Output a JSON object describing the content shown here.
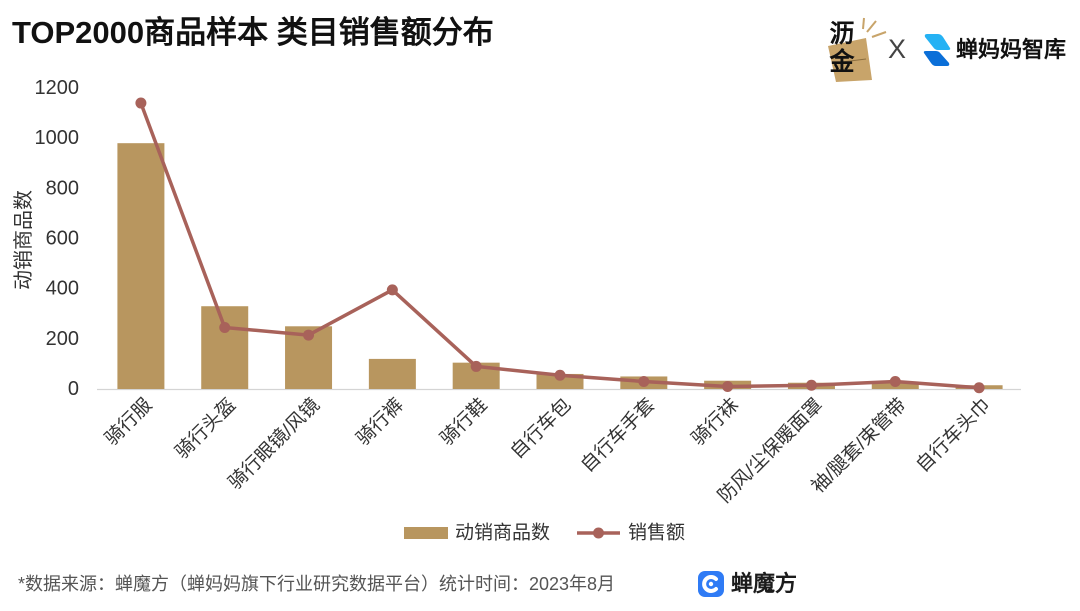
{
  "header": {
    "partner_logo_text": "沥金",
    "separator": "X",
    "logo_text": "蝉妈妈智库",
    "colors": {
      "partner_gold": "#C8A46A",
      "brand_blue_light": "#25B2F4",
      "brand_blue_dark": "#0B6FD8"
    }
  },
  "chart_data": {
    "type": "bar",
    "title": "TOP2000商品样本 类目销售额分布",
    "xlabel": "",
    "ylabel": "动销商品数",
    "ylim": [
      0,
      1200
    ],
    "yticks": [
      0,
      200,
      400,
      600,
      800,
      1000,
      1200
    ],
    "grid": false,
    "legend": "bottom",
    "categories": [
      "骑行服",
      "骑行头盔",
      "骑行眼镜/风镜",
      "骑行裤",
      "骑行鞋",
      "自行车包",
      "自行车手套",
      "骑行袜",
      "防风/尘保暖面罩",
      "袖/腿套/束管带",
      "自行车头巾"
    ],
    "series": [
      {
        "name": "动销商品数",
        "type": "bar",
        "color": "#B8965F",
        "values": [
          980,
          330,
          250,
          120,
          105,
          60,
          50,
          33,
          25,
          30,
          15
        ]
      },
      {
        "name": "销售额",
        "type": "line",
        "color": "#A8625A",
        "values": [
          1140,
          245,
          215,
          395,
          90,
          55,
          30,
          10,
          15,
          30,
          5
        ]
      }
    ]
  },
  "footer": {
    "source_text": "*数据来源：蝉魔方（蝉妈妈旗下行业研究数据平台）统计时间：2023年8月",
    "logo_text": "蝉魔方",
    "logo_color": "#2F7BF5"
  }
}
